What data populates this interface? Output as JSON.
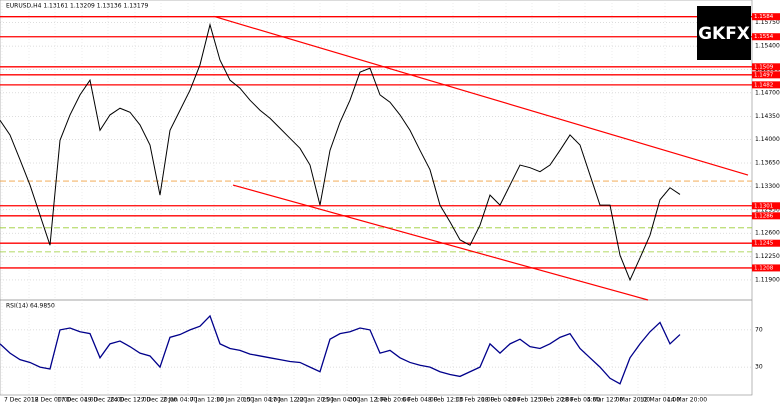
{
  "chart_data": [
    {
      "type": "line",
      "title": "EURUSD,H4 1.13161 1.13209 1.13136 1.13179",
      "logo": "GKFX",
      "xlim": [
        0,
        75
      ],
      "ylim": [
        1.116,
        1.16
      ],
      "x": [
        0,
        1,
        2,
        3,
        4,
        5,
        6,
        7,
        8,
        9,
        10,
        11,
        12,
        13,
        14,
        15,
        16,
        17,
        18,
        19,
        20,
        21,
        22,
        23,
        24,
        25,
        26,
        27,
        28,
        29,
        30,
        31,
        32,
        33,
        34,
        35,
        36,
        37,
        38,
        39,
        40,
        41,
        42,
        43,
        44,
        45,
        46,
        47,
        48,
        49,
        50,
        51,
        52,
        53,
        54,
        55,
        56,
        57,
        58,
        59,
        60,
        61,
        62,
        63,
        64,
        65,
        66,
        67,
        68
      ],
      "series": [
        {
          "name": "EURUSD",
          "color": "#000000",
          "values": [
            1.1429,
            1.1407,
            1.137,
            1.1332,
            1.1287,
            1.1242,
            1.1399,
            1.1437,
            1.1467,
            1.1489,
            1.1414,
            1.1437,
            1.1447,
            1.1441,
            1.1422,
            1.1392,
            1.1317,
            1.1414,
            1.1444,
            1.1474,
            1.1512,
            1.1572,
            1.1519,
            1.1489,
            1.1477,
            1.1459,
            1.1444,
            1.1432,
            1.1417,
            1.1402,
            1.1387,
            1.1362,
            1.1302,
            1.1384,
            1.1426,
            1.1459,
            1.1501,
            1.1507,
            1.1467,
            1.1456,
            1.1437,
            1.1414,
            1.1384,
            1.1355,
            1.1302,
            1.1277,
            1.125,
            1.1242,
            1.1272,
            1.1317,
            1.1302,
            1.1332,
            1.1362,
            1.1358,
            1.1352,
            1.1362,
            1.1384,
            1.1407,
            1.1392,
            1.1347,
            1.1302,
            1.1302,
            1.1227,
            1.119,
            1.1223,
            1.1257,
            1.131,
            1.1328,
            1.1318
          ]
        }
      ],
      "yticks": [
        {
          "value": 1.119,
          "label": "1.11900"
        },
        {
          "value": 1.1225,
          "label": "1.12250"
        },
        {
          "value": 1.126,
          "label": "1.12600"
        },
        {
          "value": 1.1295,
          "label": "1.12950"
        },
        {
          "value": 1.133,
          "label": "1.13300"
        },
        {
          "value": 1.1365,
          "label": "1.13650"
        },
        {
          "value": 1.14,
          "label": "1.14000"
        },
        {
          "value": 1.1435,
          "label": "1.14350"
        },
        {
          "value": 1.147,
          "label": "1.14700"
        },
        {
          "value": 1.1505,
          "label": "1.15050"
        },
        {
          "value": 1.154,
          "label": "1.15400"
        },
        {
          "value": 1.1575,
          "label": "1.15750"
        }
      ],
      "levels": [
        1.1584,
        1.1554,
        1.1509,
        1.1497,
        1.1482,
        1.1301,
        1.1286,
        1.1245,
        1.1208
      ],
      "level_color": "#ff0000",
      "dashed_levels": [
        {
          "value": 1.1338,
          "color": "#f0a040"
        },
        {
          "value": 1.1268,
          "color": "#9acd32"
        },
        {
          "value": 1.1232,
          "color": "#9acd32"
        }
      ],
      "trendlines": [
        {
          "x": [
            21.5,
            74.8
          ],
          "y": [
            1.1584,
            1.1347
          ]
        },
        {
          "x": [
            23.3,
            64.8
          ],
          "y": [
            1.1332,
            1.116
          ]
        }
      ],
      "xticks": [
        {
          "value": 0.2,
          "label": "7 Dec 2018"
        },
        {
          "value": 2.9,
          "label": "12 Dec 00:00"
        },
        {
          "value": 5.5,
          "label": "17 Dec 04:00"
        },
        {
          "value": 8.2,
          "label": "19 Dec 20:00"
        },
        {
          "value": 10.8,
          "label": "24 Dec 12:00"
        },
        {
          "value": 13.5,
          "label": "27 Dec 20:00"
        },
        {
          "value": 16.1,
          "label": "2 Jan 04:00"
        },
        {
          "value": 18.8,
          "label": "7 Jan 12:00"
        },
        {
          "value": 21.4,
          "label": "10 Jan 20:00"
        },
        {
          "value": 24.1,
          "label": "15 Jan 04:00"
        },
        {
          "value": 26.7,
          "label": "17 Jan 12:00"
        },
        {
          "value": 29.4,
          "label": "22 Jan 20:00"
        },
        {
          "value": 32,
          "label": "25 Jan 04:00"
        },
        {
          "value": 34.7,
          "label": "30 Jan 12:00"
        },
        {
          "value": 37.3,
          "label": "1 Feb 20:00"
        },
        {
          "value": 40,
          "label": "6 Feb 04:00"
        },
        {
          "value": 42.6,
          "label": "8 Feb 12:00"
        },
        {
          "value": 45.3,
          "label": "13 Feb 20:00"
        },
        {
          "value": 47.9,
          "label": "18 Feb 04:00"
        },
        {
          "value": 50.6,
          "label": "20 Feb 12:00"
        },
        {
          "value": 53.2,
          "label": "25 Feb 20:00"
        },
        {
          "value": 55.9,
          "label": "28 Feb 04:00"
        },
        {
          "value": 58.5,
          "label": "5 Mar 12:00"
        },
        {
          "value": 61.2,
          "label": "7 Mar 20:00"
        },
        {
          "value": 63.8,
          "label": "12 Mar 04:00"
        },
        {
          "value": 66.5,
          "label": "14 Mar 20:00"
        }
      ]
    },
    {
      "type": "line",
      "title": "RSI(14) 64.9850",
      "xlim": [
        0,
        75
      ],
      "ylim": [
        0,
        100
      ],
      "yticks": [
        70,
        30
      ],
      "x": [
        0,
        1,
        2,
        3,
        4,
        5,
        6,
        7,
        8,
        9,
        10,
        11,
        12,
        13,
        14,
        15,
        16,
        17,
        18,
        19,
        20,
        21,
        22,
        23,
        24,
        25,
        26,
        27,
        28,
        29,
        30,
        31,
        32,
        33,
        34,
        35,
        36,
        37,
        38,
        39,
        40,
        41,
        42,
        43,
        44,
        45,
        46,
        47,
        48,
        49,
        50,
        51,
        52,
        53,
        54,
        55,
        56,
        57,
        58,
        59,
        60,
        61,
        62,
        63,
        64,
        65,
        66,
        67,
        68
      ],
      "series": [
        {
          "name": "RSI(14)",
          "color": "#00008b",
          "values": [
            55,
            45,
            38,
            35,
            30,
            28,
            70,
            72,
            68,
            66,
            40,
            55,
            58,
            52,
            45,
            42,
            30,
            62,
            65,
            70,
            74,
            85,
            55,
            50,
            48,
            44,
            42,
            40,
            38,
            36,
            35,
            30,
            25,
            60,
            66,
            68,
            72,
            70,
            45,
            48,
            40,
            35,
            32,
            30,
            25,
            22,
            20,
            25,
            30,
            55,
            45,
            55,
            60,
            52,
            50,
            55,
            62,
            66,
            50,
            40,
            30,
            18,
            12,
            40,
            55,
            68,
            78,
            55,
            65
          ]
        }
      ]
    }
  ]
}
